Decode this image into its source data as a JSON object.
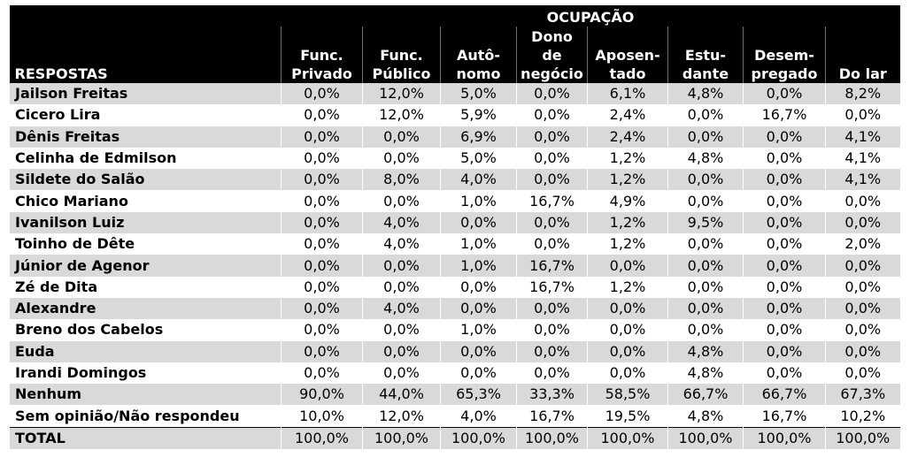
{
  "table": {
    "group_header": "OCUPAÇÃO",
    "row_header": "RESPOSTAS",
    "columns": [
      {
        "line1": "",
        "line2": "Func.",
        "line3": "Privado"
      },
      {
        "line1": "",
        "line2": "Func.",
        "line3": "Público"
      },
      {
        "line1": "",
        "line2": "Autô-",
        "line3": "nomo"
      },
      {
        "line1": "Dono",
        "line2": "de",
        "line3": "negócio"
      },
      {
        "line1": "",
        "line2": "Aposen-",
        "line3": "tado"
      },
      {
        "line1": "",
        "line2": "Estu-",
        "line3": "dante"
      },
      {
        "line1": "",
        "line2": "Desem-",
        "line3": "pregado"
      },
      {
        "line1": "",
        "line2": "",
        "line3": "Do lar"
      }
    ],
    "rows": [
      {
        "label": "Jailson Freitas",
        "values": [
          "0,0%",
          "12,0%",
          "5,0%",
          "0,0%",
          "6,1%",
          "4,8%",
          "0,0%",
          "8,2%"
        ]
      },
      {
        "label": "Cicero Lira",
        "values": [
          "0,0%",
          "12,0%",
          "5,9%",
          "0,0%",
          "2,4%",
          "0,0%",
          "16,7%",
          "0,0%"
        ]
      },
      {
        "label": "Dênis Freitas",
        "values": [
          "0,0%",
          "0,0%",
          "6,9%",
          "0,0%",
          "2,4%",
          "0,0%",
          "0,0%",
          "4,1%"
        ]
      },
      {
        "label": "Celinha de Edmilson",
        "values": [
          "0,0%",
          "0,0%",
          "5,0%",
          "0,0%",
          "1,2%",
          "4,8%",
          "0,0%",
          "4,1%"
        ]
      },
      {
        "label": "Sildete do Salão",
        "values": [
          "0,0%",
          "8,0%",
          "4,0%",
          "0,0%",
          "1,2%",
          "0,0%",
          "0,0%",
          "4,1%"
        ]
      },
      {
        "label": "Chico Mariano",
        "values": [
          "0,0%",
          "0,0%",
          "1,0%",
          "16,7%",
          "4,9%",
          "0,0%",
          "0,0%",
          "0,0%"
        ]
      },
      {
        "label": "Ivanilson Luiz",
        "values": [
          "0,0%",
          "4,0%",
          "0,0%",
          "0,0%",
          "1,2%",
          "9,5%",
          "0,0%",
          "0,0%"
        ]
      },
      {
        "label": "Toinho de Dête",
        "values": [
          "0,0%",
          "4,0%",
          "1,0%",
          "0,0%",
          "1,2%",
          "0,0%",
          "0,0%",
          "2,0%"
        ]
      },
      {
        "label": "Júnior de Agenor",
        "values": [
          "0,0%",
          "0,0%",
          "1,0%",
          "16,7%",
          "0,0%",
          "0,0%",
          "0,0%",
          "0,0%"
        ]
      },
      {
        "label": "Zé de Dita",
        "values": [
          "0,0%",
          "0,0%",
          "0,0%",
          "16,7%",
          "1,2%",
          "0,0%",
          "0,0%",
          "0,0%"
        ]
      },
      {
        "label": "Alexandre",
        "values": [
          "0,0%",
          "4,0%",
          "0,0%",
          "0,0%",
          "0,0%",
          "0,0%",
          "0,0%",
          "0,0%"
        ]
      },
      {
        "label": "Breno dos Cabelos",
        "values": [
          "0,0%",
          "0,0%",
          "1,0%",
          "0,0%",
          "0,0%",
          "0,0%",
          "0,0%",
          "0,0%"
        ]
      },
      {
        "label": "Euda",
        "values": [
          "0,0%",
          "0,0%",
          "0,0%",
          "0,0%",
          "0,0%",
          "4,8%",
          "0,0%",
          "0,0%"
        ]
      },
      {
        "label": "Irandi Domingos",
        "values": [
          "0,0%",
          "0,0%",
          "0,0%",
          "0,0%",
          "0,0%",
          "4,8%",
          "0,0%",
          "0,0%"
        ]
      },
      {
        "label": "Nenhum",
        "values": [
          "90,0%",
          "44,0%",
          "65,3%",
          "33,3%",
          "58,5%",
          "66,7%",
          "66,7%",
          "67,3%"
        ]
      },
      {
        "label": "Sem opinião/Não respondeu",
        "values": [
          "10,0%",
          "12,0%",
          "4,0%",
          "16,7%",
          "19,5%",
          "4,8%",
          "16,7%",
          "10,2%"
        ]
      },
      {
        "label": "TOTAL",
        "values": [
          "100,0%",
          "100,0%",
          "100,0%",
          "100,0%",
          "100,0%",
          "100,0%",
          "100,0%",
          "100,0%"
        ]
      }
    ]
  }
}
